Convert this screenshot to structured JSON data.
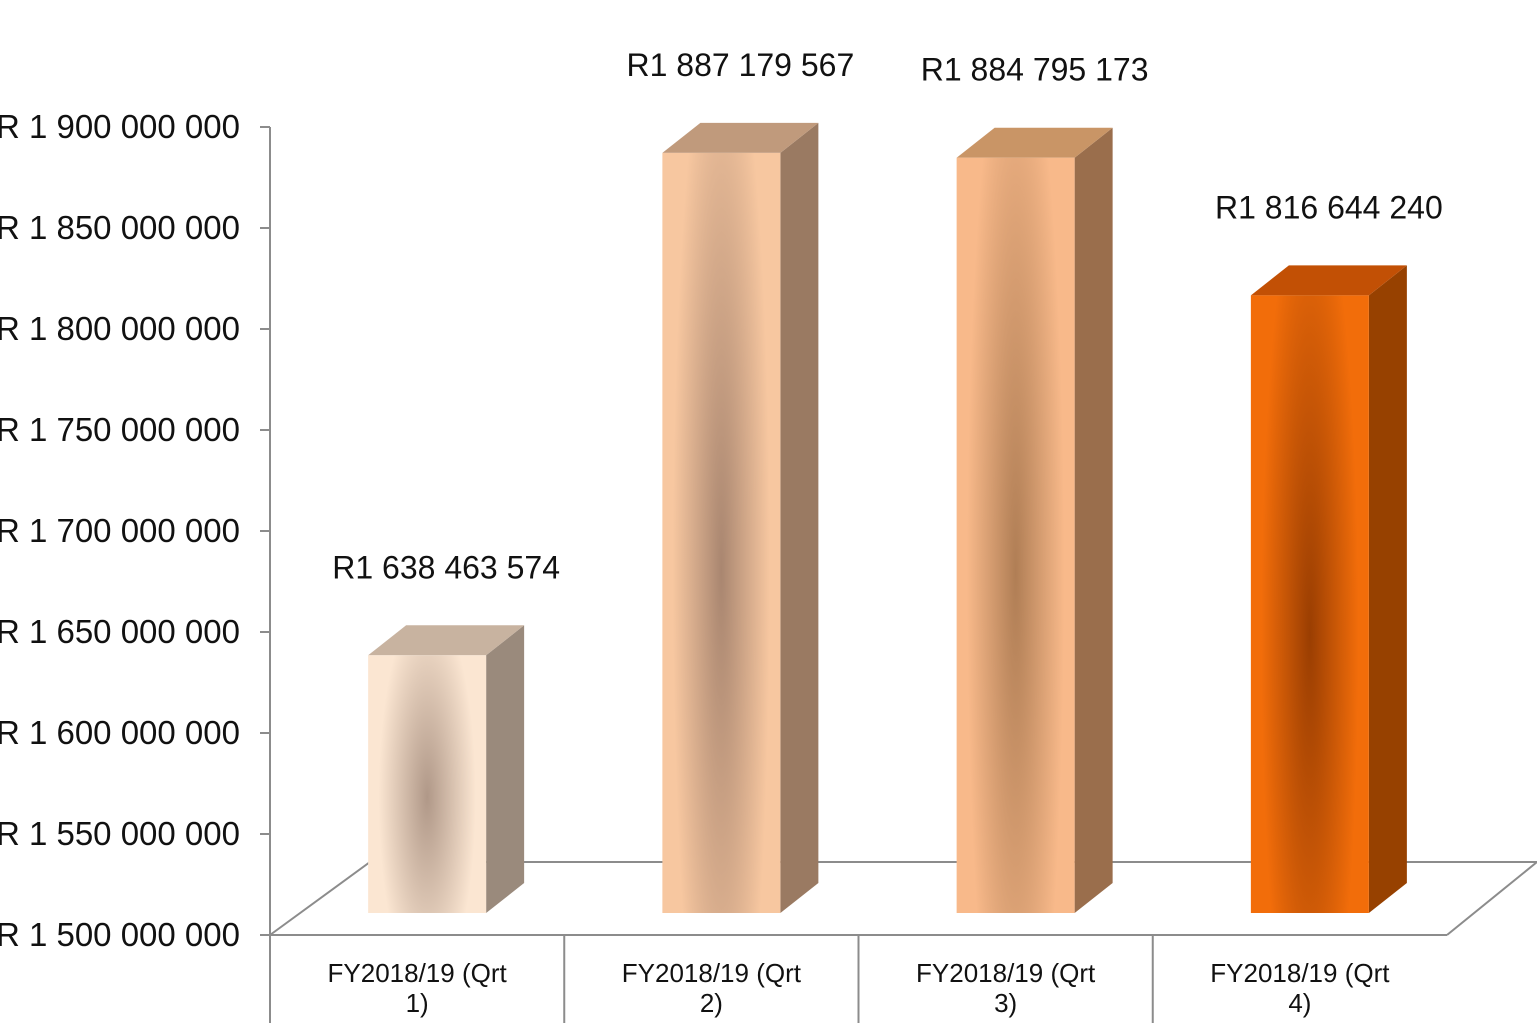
{
  "chart_data": {
    "type": "bar",
    "style": "3d-column",
    "categories": [
      "FY2018/19 (Qrt 1)",
      "FY2018/19 (Qrt 2)",
      "FY2018/19 (Qrt 3)",
      "FY2018/19 (Qrt 4)"
    ],
    "category_label_lines": [
      [
        "FY2018/19 (Qrt",
        "1)"
      ],
      [
        "FY2018/19 (Qrt",
        "2)"
      ],
      [
        "FY2018/19 (Qrt",
        "3)"
      ],
      [
        "FY2018/19 (Qrt",
        "4)"
      ]
    ],
    "values": [
      1638463574,
      1887179567,
      1884795173,
      1816644240
    ],
    "data_labels": [
      "R1 638 463 574",
      "R1 887 179 567",
      "R1 884 795 173",
      "R1 816 644 240"
    ],
    "ylim": [
      1500000000,
      1900000000
    ],
    "yticks": [
      1500000000,
      1550000000,
      1600000000,
      1650000000,
      1700000000,
      1750000000,
      1800000000,
      1850000000,
      1900000000
    ],
    "ytick_labels": [
      "R 1 500 000 000",
      "R 1 550 000 000",
      "R 1 600 000 000",
      "R 1 650 000 000",
      "R 1 700 000 000",
      "R 1 750 000 000",
      "R 1 800 000 000",
      "R 1 850 000 000",
      "R 1 900 000 000"
    ],
    "title": "",
    "xlabel": "",
    "ylabel": "",
    "grid": false,
    "legend": "none",
    "bar_colors": [
      {
        "front_light": "#fbe6d2",
        "front_dark": "#b09888",
        "side": "#9a8a7c",
        "top": "#c8b3a0"
      },
      {
        "front_light": "#f7c7a0",
        "front_dark": "#a98670",
        "side": "#9a7a62",
        "top": "#c09a7c"
      },
      {
        "front_light": "#f8b98a",
        "front_dark": "#b07e55",
        "side": "#9a6e4c",
        "top": "#c99566"
      },
      {
        "front_light": "#f26d0a",
        "front_dark": "#9a3e02",
        "side": "#974100",
        "top": "#c25005"
      }
    ],
    "axis_color": "#8c8c8c"
  }
}
